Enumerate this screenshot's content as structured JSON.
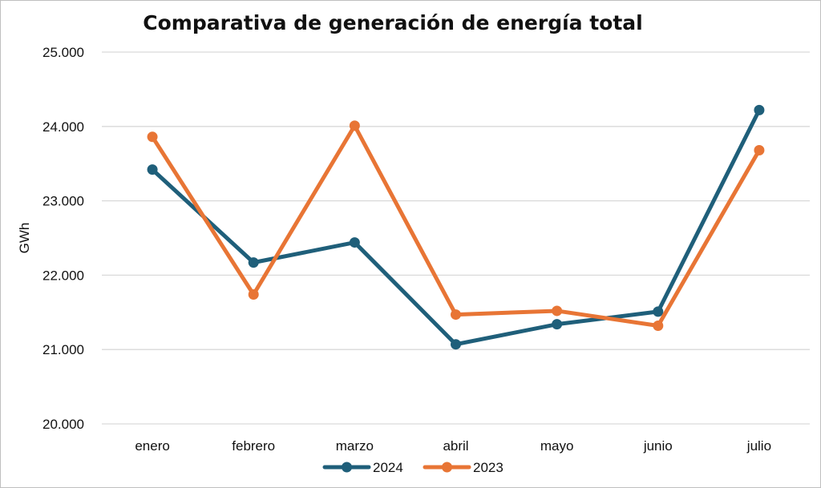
{
  "chart_data": {
    "type": "line",
    "title": "Comparativa de generación de energía total",
    "ylabel": "GWh",
    "xlabel": "",
    "categories": [
      "enero",
      "febrero",
      "marzo",
      "abril",
      "mayo",
      "junio",
      "julio"
    ],
    "ylim": [
      20000,
      25000
    ],
    "yticks": [
      20000,
      21000,
      22000,
      23000,
      24000,
      25000
    ],
    "ytick_labels": [
      "20.000",
      "21.000",
      "22.000",
      "23.000",
      "24.000",
      "25.000"
    ],
    "grid": true,
    "legend_position": "bottom",
    "series": [
      {
        "name": "2024",
        "color": "#1F5F7A",
        "values": [
          23420,
          22170,
          22440,
          21070,
          21340,
          21510,
          24220
        ]
      },
      {
        "name": "2023",
        "color": "#E87535",
        "values": [
          23860,
          21740,
          24010,
          21470,
          21520,
          21320,
          23680
        ]
      }
    ]
  }
}
